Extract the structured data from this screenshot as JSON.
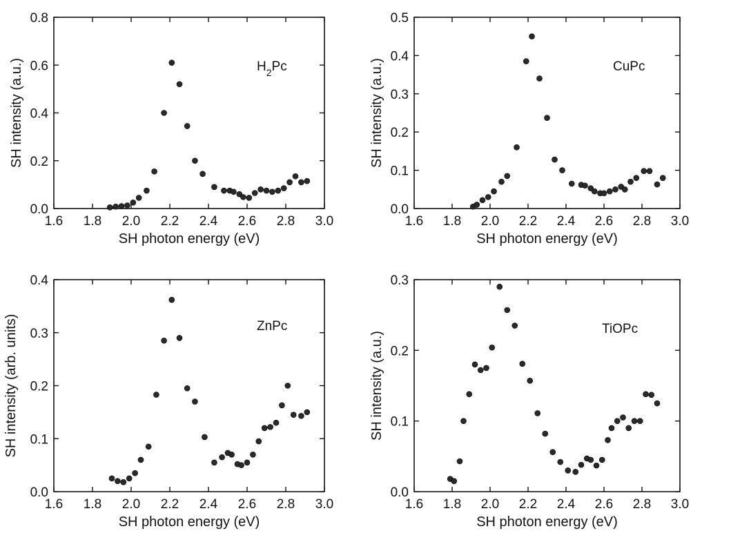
{
  "chart_data": [
    {
      "type": "scatter",
      "label_parts": [
        {
          "text": "H",
          "sub": false
        },
        {
          "text": "2",
          "sub": true
        },
        {
          "text": "Pc",
          "sub": false
        }
      ],
      "xlabel": "SH photon energy (eV)",
      "ylabel": "SH intensity (a.u.)",
      "xlim": [
        1.6,
        3.0
      ],
      "ylim": [
        0,
        0.8
      ],
      "xticks": [
        1.6,
        1.8,
        2.0,
        2.2,
        2.4,
        2.6,
        2.8,
        3.0
      ],
      "xtick_labels": [
        "1.6",
        "1.8",
        "2.0",
        "2.2",
        "2.4",
        "2.6",
        "2.8",
        "3.0"
      ],
      "yticks": [
        0,
        0.2,
        0.4,
        0.6,
        0.8
      ],
      "ytick_labels": [
        "0.0",
        "0.2",
        "0.4",
        "0.6",
        "0.8"
      ],
      "points": [
        [
          1.89,
          0.005
        ],
        [
          1.92,
          0.008
        ],
        [
          1.95,
          0.01
        ],
        [
          1.98,
          0.013
        ],
        [
          2.01,
          0.025
        ],
        [
          2.04,
          0.045
        ],
        [
          2.08,
          0.075
        ],
        [
          2.12,
          0.155
        ],
        [
          2.17,
          0.4
        ],
        [
          2.21,
          0.61
        ],
        [
          2.25,
          0.52
        ],
        [
          2.29,
          0.345
        ],
        [
          2.33,
          0.2
        ],
        [
          2.37,
          0.145
        ],
        [
          2.43,
          0.09
        ],
        [
          2.48,
          0.075
        ],
        [
          2.51,
          0.075
        ],
        [
          2.53,
          0.07
        ],
        [
          2.56,
          0.06
        ],
        [
          2.58,
          0.048
        ],
        [
          2.61,
          0.045
        ],
        [
          2.64,
          0.065
        ],
        [
          2.67,
          0.08
        ],
        [
          2.7,
          0.075
        ],
        [
          2.73,
          0.07
        ],
        [
          2.76,
          0.075
        ],
        [
          2.79,
          0.085
        ],
        [
          2.82,
          0.11
        ],
        [
          2.85,
          0.135
        ],
        [
          2.88,
          0.11
        ],
        [
          2.91,
          0.115
        ]
      ]
    },
    {
      "type": "scatter",
      "label_parts": [
        {
          "text": "CuPc",
          "sub": false
        }
      ],
      "xlabel": "SH photon energy (eV)",
      "ylabel": "SH intensity (a.u.)",
      "xlim": [
        1.6,
        3.0
      ],
      "ylim": [
        0,
        0.5
      ],
      "xticks": [
        1.6,
        1.8,
        2.0,
        2.2,
        2.4,
        2.6,
        2.8,
        3.0
      ],
      "xtick_labels": [
        "1.6",
        "1.8",
        "2.0",
        "2.2",
        "2.4",
        "2.6",
        "2.8",
        "3.0"
      ],
      "yticks": [
        0,
        0.1,
        0.2,
        0.3,
        0.4,
        0.5
      ],
      "ytick_labels": [
        "0.0",
        "0.1",
        "0.2",
        "0.3",
        "0.4",
        "0.5"
      ],
      "points": [
        [
          1.91,
          0.005
        ],
        [
          1.93,
          0.01
        ],
        [
          1.96,
          0.022
        ],
        [
          1.99,
          0.03
        ],
        [
          2.02,
          0.045
        ],
        [
          2.06,
          0.07
        ],
        [
          2.09,
          0.085
        ],
        [
          2.14,
          0.16
        ],
        [
          2.19,
          0.385
        ],
        [
          2.22,
          0.45
        ],
        [
          2.26,
          0.34
        ],
        [
          2.3,
          0.237
        ],
        [
          2.34,
          0.128
        ],
        [
          2.38,
          0.1
        ],
        [
          2.43,
          0.065
        ],
        [
          2.48,
          0.062
        ],
        [
          2.5,
          0.06
        ],
        [
          2.53,
          0.053
        ],
        [
          2.55,
          0.045
        ],
        [
          2.58,
          0.04
        ],
        [
          2.6,
          0.04
        ],
        [
          2.63,
          0.045
        ],
        [
          2.66,
          0.05
        ],
        [
          2.69,
          0.057
        ],
        [
          2.71,
          0.05
        ],
        [
          2.74,
          0.07
        ],
        [
          2.77,
          0.08
        ],
        [
          2.81,
          0.098
        ],
        [
          2.84,
          0.098
        ],
        [
          2.88,
          0.063
        ],
        [
          2.91,
          0.08
        ]
      ]
    },
    {
      "type": "scatter",
      "label_parts": [
        {
          "text": "ZnPc",
          "sub": false
        }
      ],
      "xlabel": "SH photon energy (eV)",
      "ylabel": "SH intensity (arb. units)",
      "xlim": [
        1.6,
        3.0
      ],
      "ylim": [
        0,
        0.4
      ],
      "xticks": [
        1.6,
        1.8,
        2.0,
        2.2,
        2.4,
        2.6,
        2.8,
        3.0
      ],
      "xtick_labels": [
        "1.6",
        "1.8",
        "2.0",
        "2.2",
        "2.4",
        "2.6",
        "2.8",
        "3.0"
      ],
      "yticks": [
        0,
        0.1,
        0.2,
        0.3,
        0.4
      ],
      "ytick_labels": [
        "0.0",
        "0.1",
        "0.2",
        "0.3",
        "0.4"
      ],
      "points": [
        [
          1.9,
          0.025
        ],
        [
          1.93,
          0.02
        ],
        [
          1.96,
          0.018
        ],
        [
          1.99,
          0.025
        ],
        [
          2.02,
          0.035
        ],
        [
          2.05,
          0.06
        ],
        [
          2.09,
          0.085
        ],
        [
          2.13,
          0.183
        ],
        [
          2.17,
          0.285
        ],
        [
          2.21,
          0.362
        ],
        [
          2.25,
          0.29
        ],
        [
          2.29,
          0.195
        ],
        [
          2.33,
          0.17
        ],
        [
          2.38,
          0.103
        ],
        [
          2.43,
          0.055
        ],
        [
          2.47,
          0.065
        ],
        [
          2.5,
          0.073
        ],
        [
          2.52,
          0.07
        ],
        [
          2.55,
          0.052
        ],
        [
          2.57,
          0.05
        ],
        [
          2.6,
          0.055
        ],
        [
          2.63,
          0.07
        ],
        [
          2.66,
          0.095
        ],
        [
          2.69,
          0.12
        ],
        [
          2.72,
          0.122
        ],
        [
          2.75,
          0.13
        ],
        [
          2.78,
          0.163
        ],
        [
          2.81,
          0.2
        ],
        [
          2.84,
          0.145
        ],
        [
          2.88,
          0.143
        ],
        [
          2.91,
          0.15
        ]
      ]
    },
    {
      "type": "scatter",
      "label_parts": [
        {
          "text": "TiOPc",
          "sub": false
        }
      ],
      "xlabel": "SH photon energy (eV)",
      "ylabel": "SH intensity (a.u.)",
      "xlim": [
        1.6,
        3.0
      ],
      "ylim": [
        0,
        0.3
      ],
      "xticks": [
        1.6,
        1.8,
        2.0,
        2.2,
        2.4,
        2.6,
        2.8,
        3.0
      ],
      "xtick_labels": [
        "1.6",
        "1.8",
        "2.0",
        "2.2",
        "2.4",
        "2.6",
        "2.8",
        "3.0"
      ],
      "yticks": [
        0,
        0.1,
        0.2,
        0.3
      ],
      "ytick_labels": [
        "0.0",
        "0.1",
        "0.2",
        "0.3"
      ],
      "points": [
        [
          1.79,
          0.018
        ],
        [
          1.81,
          0.015
        ],
        [
          1.84,
          0.043
        ],
        [
          1.86,
          0.1
        ],
        [
          1.89,
          0.138
        ],
        [
          1.92,
          0.18
        ],
        [
          1.95,
          0.172
        ],
        [
          1.98,
          0.175
        ],
        [
          2.01,
          0.204
        ],
        [
          2.05,
          0.29
        ],
        [
          2.09,
          0.257
        ],
        [
          2.13,
          0.235
        ],
        [
          2.17,
          0.181
        ],
        [
          2.21,
          0.157
        ],
        [
          2.25,
          0.111
        ],
        [
          2.29,
          0.082
        ],
        [
          2.33,
          0.056
        ],
        [
          2.37,
          0.042
        ],
        [
          2.41,
          0.03
        ],
        [
          2.45,
          0.028
        ],
        [
          2.48,
          0.038
        ],
        [
          2.51,
          0.047
        ],
        [
          2.53,
          0.045
        ],
        [
          2.56,
          0.037
        ],
        [
          2.59,
          0.045
        ],
        [
          2.62,
          0.073
        ],
        [
          2.64,
          0.09
        ],
        [
          2.67,
          0.1
        ],
        [
          2.7,
          0.105
        ],
        [
          2.73,
          0.09
        ],
        [
          2.76,
          0.1
        ],
        [
          2.79,
          0.1
        ],
        [
          2.82,
          0.138
        ],
        [
          2.85,
          0.137
        ],
        [
          2.88,
          0.125
        ]
      ]
    }
  ]
}
